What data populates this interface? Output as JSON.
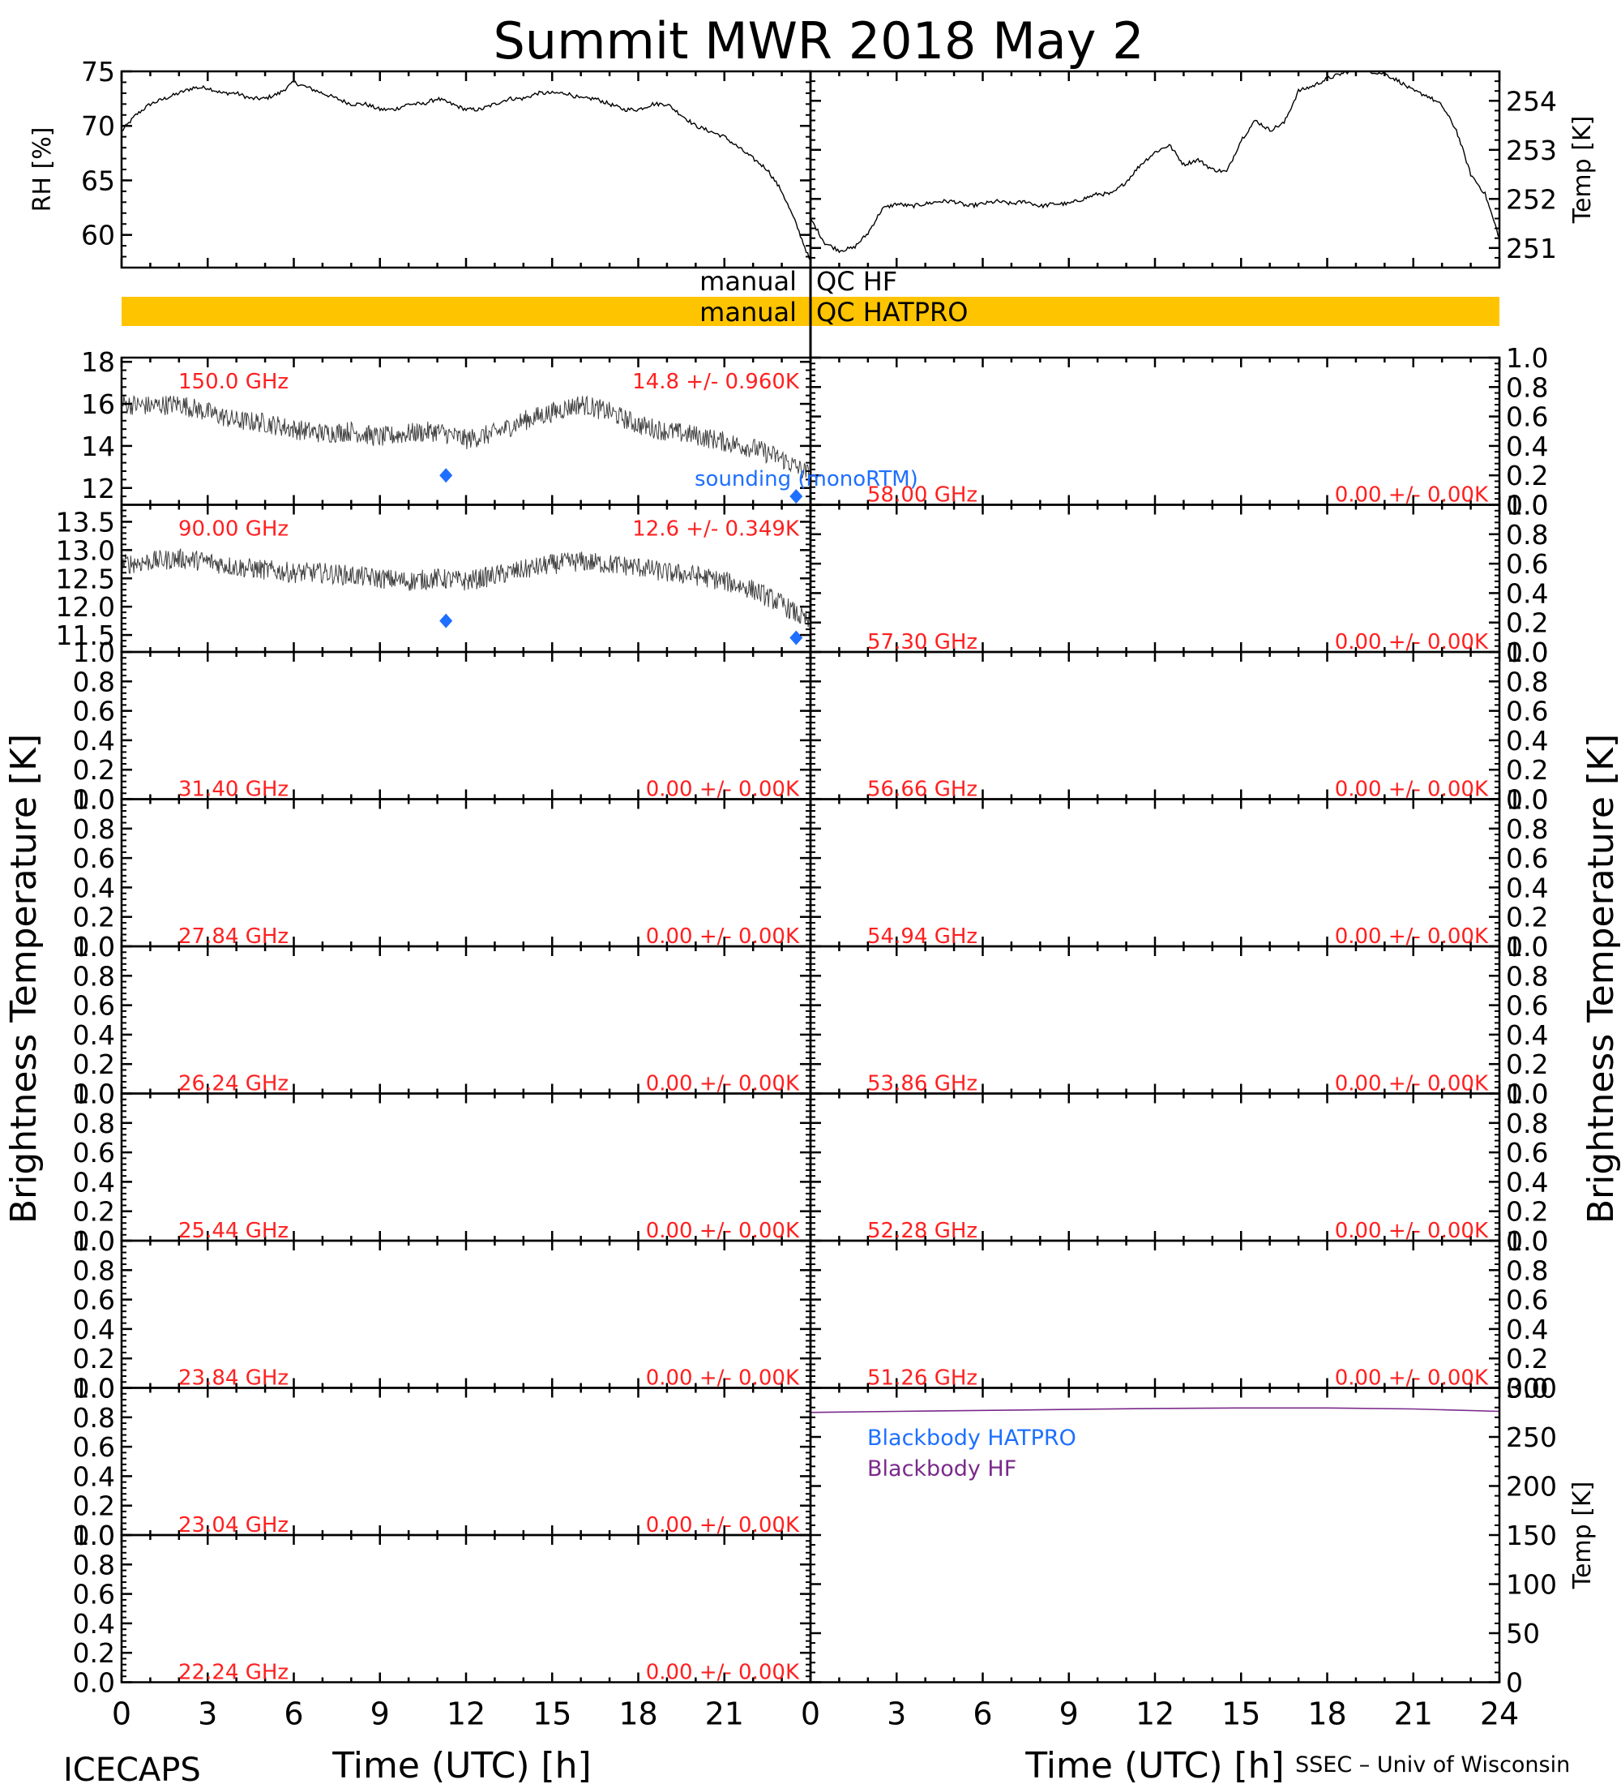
{
  "title": "Summit MWR 2018 May  2",
  "footer": {
    "left": "ICECAPS",
    "right": "SSEC – Univ of Wisconsin"
  },
  "qc_flags": [
    {
      "label_left": "manual",
      "label_right": "QC HF",
      "active": false,
      "color": "#ffffff"
    },
    {
      "label_left": "manual",
      "label_right": "QC HATPRO",
      "active": true,
      "color": "#FFC400"
    }
  ],
  "colors": {
    "axis": "#000000",
    "annotation": "#FF2020",
    "sounding": "#1E6FFF",
    "blackbody_hatpro": "#1E6FFF",
    "blackbody_hf": "#7A2A8A",
    "trace": "#000000"
  },
  "x_axis": {
    "label": "Time (UTC) [h]",
    "range": [
      0,
      24
    ],
    "ticks": [
      0,
      3,
      6,
      9,
      12,
      15,
      18,
      21
    ],
    "ticks_right": [
      0,
      3,
      6,
      9,
      12,
      15,
      18,
      21,
      24
    ]
  },
  "y_labels": {
    "left": "Brightness Temperature [K]",
    "right": "Brightness Temperature [K]"
  },
  "chart_data": [
    {
      "type": "line",
      "panel": "rh",
      "ylabel": "RH [%]",
      "ylim": [
        57,
        75
      ],
      "yticks": [
        60,
        65,
        70,
        75
      ],
      "series": [
        {
          "x": [
            0,
            0.5,
            1,
            1.5,
            2,
            2.5,
            3,
            3.5,
            4,
            4.5,
            5,
            5.5,
            6,
            6.5,
            7,
            7.5,
            8,
            8.5,
            9,
            9.5,
            10,
            10.5,
            11,
            11.5,
            12,
            12.5,
            13,
            13.5,
            14,
            14.5,
            15,
            15.5,
            16,
            16.5,
            17,
            17.5,
            18,
            18.5,
            19,
            19.5,
            20,
            20.5,
            21,
            21.5,
            22,
            22.5,
            23,
            23.5,
            24
          ],
          "values": [
            69.5,
            71,
            72,
            72.5,
            73,
            73.5,
            73.5,
            73,
            73,
            72.5,
            72.5,
            73,
            74,
            73.5,
            73,
            72.5,
            72,
            72,
            71.5,
            71.5,
            72,
            72,
            72.5,
            72,
            71.5,
            71.5,
            72,
            72.5,
            72.5,
            73,
            73,
            73,
            72.5,
            72.5,
            72,
            71.5,
            71.5,
            72,
            72,
            71,
            70,
            69.5,
            69,
            68,
            67,
            66,
            64,
            61,
            57.5
          ]
        }
      ]
    },
    {
      "type": "line",
      "panel": "temperature",
      "ylabel": "Temp [K]",
      "ylim": [
        250.6,
        254.6
      ],
      "yticks": [
        251,
        252,
        253,
        254
      ],
      "series": [
        {
          "x": [
            0,
            0.5,
            1,
            1.5,
            2,
            2.5,
            3,
            3.5,
            4,
            4.5,
            5,
            5.5,
            6,
            6.5,
            7,
            7.5,
            8,
            8.5,
            9,
            9.5,
            10,
            10.5,
            11,
            11.5,
            12,
            12.5,
            13,
            13.5,
            14,
            14.5,
            15,
            15.5,
            16,
            16.5,
            17,
            17.5,
            18,
            18.5,
            19,
            19.5,
            20,
            20.5,
            21,
            21.5,
            22,
            22.5,
            23,
            23.5,
            24
          ],
          "values": [
            251.6,
            251.1,
            250.95,
            251.0,
            251.3,
            251.8,
            251.9,
            251.85,
            251.9,
            251.95,
            251.95,
            251.85,
            251.9,
            251.95,
            251.9,
            251.95,
            251.85,
            251.9,
            251.9,
            252.0,
            252.1,
            252.1,
            252.35,
            252.7,
            252.95,
            253.1,
            252.7,
            252.8,
            252.6,
            252.55,
            253.2,
            253.6,
            253.4,
            253.55,
            254.2,
            254.3,
            254.45,
            254.55,
            254.65,
            254.6,
            254.55,
            254.4,
            254.2,
            254.1,
            253.9,
            253.4,
            252.5,
            252.1,
            251.2
          ]
        }
      ]
    },
    {
      "type": "line",
      "panel": "150 GHz",
      "frequency_label": "150.0 GHz",
      "stats_label": "14.8 +/- 0.960K",
      "ylim": [
        11.2,
        18.2
      ],
      "yticks": [
        12,
        14,
        16,
        18
      ],
      "series": [
        {
          "x": [
            0,
            1,
            2,
            3,
            4,
            5,
            6,
            7,
            8,
            9,
            10,
            11,
            12,
            13,
            14,
            15,
            16,
            17,
            18,
            19,
            20,
            21,
            22,
            23,
            24
          ],
          "values": [
            16.0,
            15.9,
            16.0,
            15.6,
            15.2,
            15.1,
            14.8,
            14.6,
            14.7,
            14.4,
            14.6,
            14.7,
            14.3,
            14.6,
            15.2,
            15.6,
            16.0,
            15.6,
            15.0,
            14.7,
            14.5,
            14.2,
            13.9,
            13.4,
            12.6
          ]
        }
      ],
      "sounding_name": "sounding (monoRTM)",
      "sounding": {
        "x": [
          11.3,
          23.5
        ],
        "values": [
          12.6,
          11.6
        ]
      }
    },
    {
      "type": "line",
      "panel": "90 GHz",
      "frequency_label": "90.00 GHz",
      "stats_label": "12.6 +/- 0.349K",
      "ylim": [
        11.2,
        13.8
      ],
      "yticks": [
        11.5,
        12.0,
        12.5,
        13.0,
        13.5
      ],
      "series": [
        {
          "x": [
            0,
            1,
            2,
            3,
            4,
            5,
            6,
            7,
            8,
            9,
            10,
            11,
            12,
            13,
            14,
            15,
            16,
            17,
            18,
            19,
            20,
            21,
            22,
            23,
            24
          ],
          "values": [
            12.75,
            12.8,
            12.85,
            12.8,
            12.7,
            12.65,
            12.6,
            12.6,
            12.55,
            12.5,
            12.45,
            12.5,
            12.45,
            12.55,
            12.65,
            12.75,
            12.8,
            12.75,
            12.7,
            12.6,
            12.55,
            12.45,
            12.3,
            12.05,
            11.7
          ]
        }
      ],
      "sounding": {
        "x": [
          11.3,
          23.5
        ],
        "values": [
          11.75,
          11.45
        ]
      }
    },
    {
      "type": "line",
      "panel": "31.40 GHz",
      "frequency_label": "31.40 GHz",
      "stats_label": "0.00 +/- 0.00K",
      "ylim": [
        0,
        1
      ],
      "yticks": [
        0.0,
        0.2,
        0.4,
        0.6,
        0.8,
        1.0
      ],
      "series": []
    },
    {
      "type": "line",
      "panel": "27.84 GHz",
      "frequency_label": "27.84 GHz",
      "stats_label": "0.00 +/- 0.00K",
      "ylim": [
        0,
        1
      ],
      "yticks": [
        0.0,
        0.2,
        0.4,
        0.6,
        0.8,
        1.0
      ],
      "series": []
    },
    {
      "type": "line",
      "panel": "26.24 GHz",
      "frequency_label": "26.24 GHz",
      "stats_label": "0.00 +/- 0.00K",
      "ylim": [
        0,
        1
      ],
      "yticks": [
        0.0,
        0.2,
        0.4,
        0.6,
        0.8,
        1.0
      ],
      "series": []
    },
    {
      "type": "line",
      "panel": "25.44 GHz",
      "frequency_label": "25.44 GHz",
      "stats_label": "0.00 +/- 0.00K",
      "ylim": [
        0,
        1
      ],
      "yticks": [
        0.0,
        0.2,
        0.4,
        0.6,
        0.8,
        1.0
      ],
      "series": []
    },
    {
      "type": "line",
      "panel": "23.84 GHz",
      "frequency_label": "23.84 GHz",
      "stats_label": "0.00 +/- 0.00K",
      "ylim": [
        0,
        1
      ],
      "yticks": [
        0.0,
        0.2,
        0.4,
        0.6,
        0.8,
        1.0
      ],
      "series": []
    },
    {
      "type": "line",
      "panel": "23.04 GHz",
      "frequency_label": "23.04 GHz",
      "stats_label": "0.00 +/- 0.00K",
      "ylim": [
        0,
        1
      ],
      "yticks": [
        0.0,
        0.2,
        0.4,
        0.6,
        0.8,
        1.0
      ],
      "series": []
    },
    {
      "type": "line",
      "panel": "22.24 GHz",
      "frequency_label": "22.24 GHz",
      "stats_label": "0.00 +/- 0.00K",
      "ylim": [
        0,
        1
      ],
      "yticks": [
        0.0,
        0.2,
        0.4,
        0.6,
        0.8,
        1.0
      ],
      "series": []
    },
    {
      "type": "line",
      "panel": "58.00 GHz",
      "frequency_label": "58.00 GHz",
      "stats_label": "0.00 +/- 0.00K",
      "ylim": [
        0,
        1
      ],
      "yticks": [
        0.0,
        0.2,
        0.4,
        0.6,
        0.8,
        1.0
      ],
      "series": []
    },
    {
      "type": "line",
      "panel": "57.30 GHz",
      "frequency_label": "57.30 GHz",
      "stats_label": "0.00 +/- 0.00K",
      "ylim": [
        0,
        1
      ],
      "yticks": [
        0.0,
        0.2,
        0.4,
        0.6,
        0.8,
        1.0
      ],
      "series": []
    },
    {
      "type": "line",
      "panel": "56.66 GHz",
      "frequency_label": "56.66 GHz",
      "stats_label": "0.00 +/- 0.00K",
      "ylim": [
        0,
        1
      ],
      "yticks": [
        0.0,
        0.2,
        0.4,
        0.6,
        0.8,
        1.0
      ],
      "series": []
    },
    {
      "type": "line",
      "panel": "54.94 GHz",
      "frequency_label": "54.94 GHz",
      "stats_label": "0.00 +/- 0.00K",
      "ylim": [
        0,
        1
      ],
      "yticks": [
        0.0,
        0.2,
        0.4,
        0.6,
        0.8,
        1.0
      ],
      "series": []
    },
    {
      "type": "line",
      "panel": "53.86 GHz",
      "frequency_label": "53.86 GHz",
      "stats_label": "0.00 +/- 0.00K",
      "ylim": [
        0,
        1
      ],
      "yticks": [
        0.0,
        0.2,
        0.4,
        0.6,
        0.8,
        1.0
      ],
      "series": []
    },
    {
      "type": "line",
      "panel": "52.28 GHz",
      "frequency_label": "52.28 GHz",
      "stats_label": "0.00 +/- 0.00K",
      "ylim": [
        0,
        1
      ],
      "yticks": [
        0.0,
        0.2,
        0.4,
        0.6,
        0.8,
        1.0
      ],
      "series": []
    },
    {
      "type": "line",
      "panel": "51.26 GHz",
      "frequency_label": "51.26 GHz",
      "stats_label": "0.00 +/- 0.00K",
      "ylim": [
        0,
        1
      ],
      "yticks": [
        0.0,
        0.2,
        0.4,
        0.6,
        0.8,
        1.0
      ],
      "series": []
    },
    {
      "type": "line",
      "panel": "blackbody",
      "ylabel": "Temp [K]",
      "ylim": [
        0,
        300
      ],
      "yticks": [
        0,
        50,
        100,
        150,
        200,
        250,
        300
      ],
      "series": [
        {
          "name": "Blackbody HATPRO",
          "x": [
            0,
            24
          ],
          "values": [
            0,
            0
          ]
        },
        {
          "name": "Blackbody HF",
          "x": [
            0,
            3,
            6,
            9,
            12,
            15,
            18,
            21,
            24
          ],
          "values": [
            275,
            276,
            277,
            278,
            279,
            279.5,
            279.5,
            278.5,
            276
          ]
        }
      ]
    }
  ]
}
